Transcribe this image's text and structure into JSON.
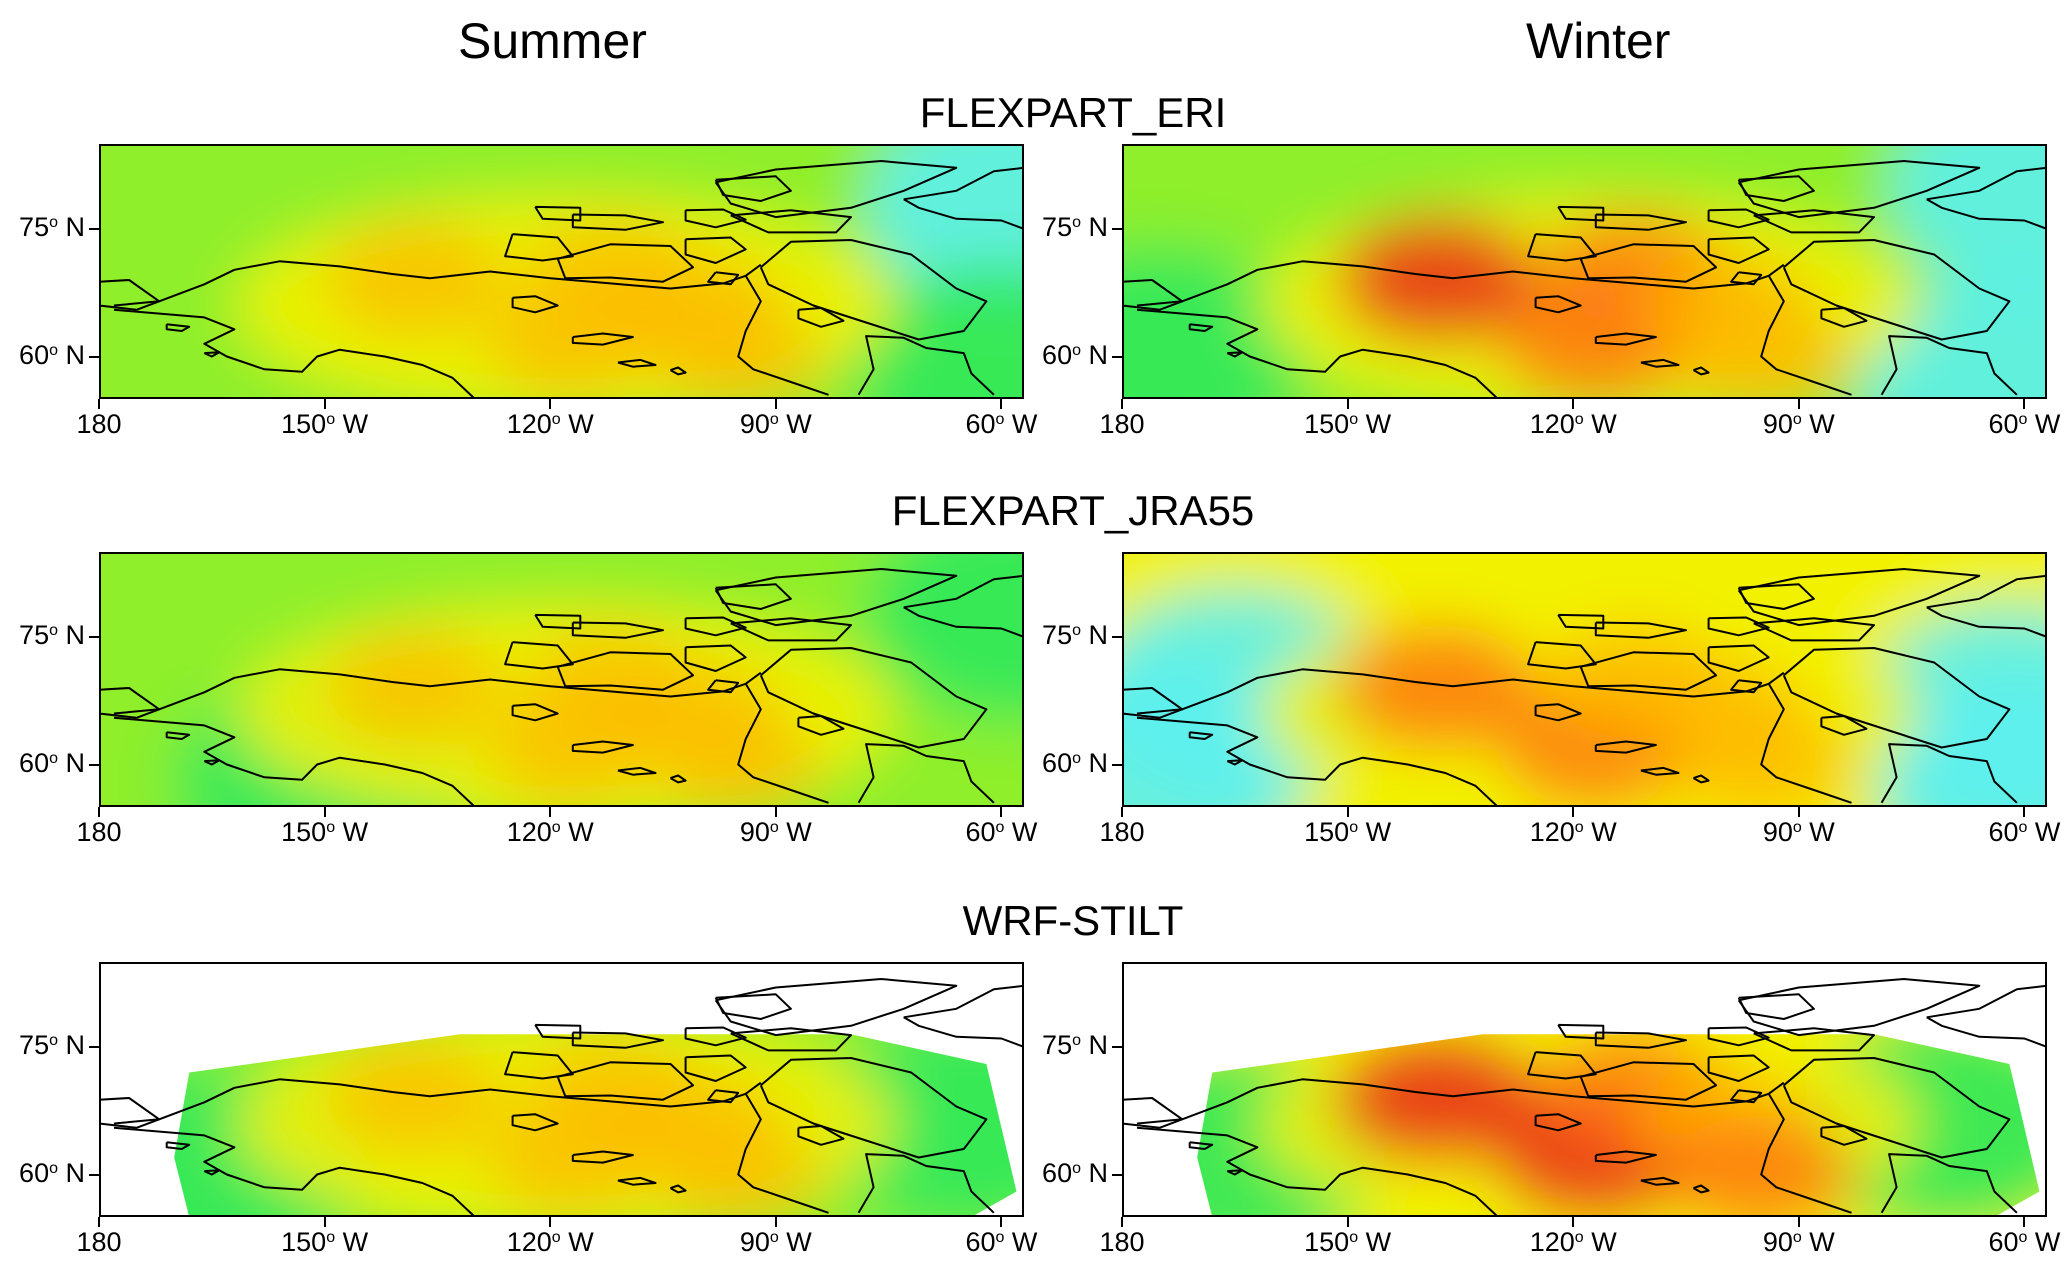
{
  "columns": [
    "Summer",
    "Winter"
  ],
  "rows": [
    "FLEXPART_ERI",
    "FLEXPART_JRA55",
    "WRF-STILT"
  ],
  "axes": {
    "y_ticks": [
      {
        "value": 75,
        "text": "75",
        "deg": "o",
        "hemi": "N"
      },
      {
        "value": 60,
        "text": "60",
        "deg": "o",
        "hemi": "N"
      }
    ],
    "x_ticks": [
      {
        "value": -180,
        "text": "180",
        "deg": "",
        "hemi": ""
      },
      {
        "value": -150,
        "text": "150",
        "deg": "o",
        "hemi": "W"
      },
      {
        "value": -120,
        "text": "120",
        "deg": "o",
        "hemi": "W"
      },
      {
        "value": -90,
        "text": "90",
        "deg": "o",
        "hemi": "W"
      },
      {
        "value": -60,
        "text": "60",
        "deg": "o",
        "hemi": "W"
      }
    ],
    "lon_range": [
      -180,
      -57
    ],
    "lat_range": [
      55,
      85
    ]
  },
  "colors": {
    "palette_low_to_high": [
      "#f4f4f4",
      "#5cf0f0",
      "#2ee85c",
      "#8eef2c",
      "#f2f200",
      "#ffb400",
      "#ff6a14",
      "#e81c1c"
    ],
    "coastline": "#000000"
  }
}
